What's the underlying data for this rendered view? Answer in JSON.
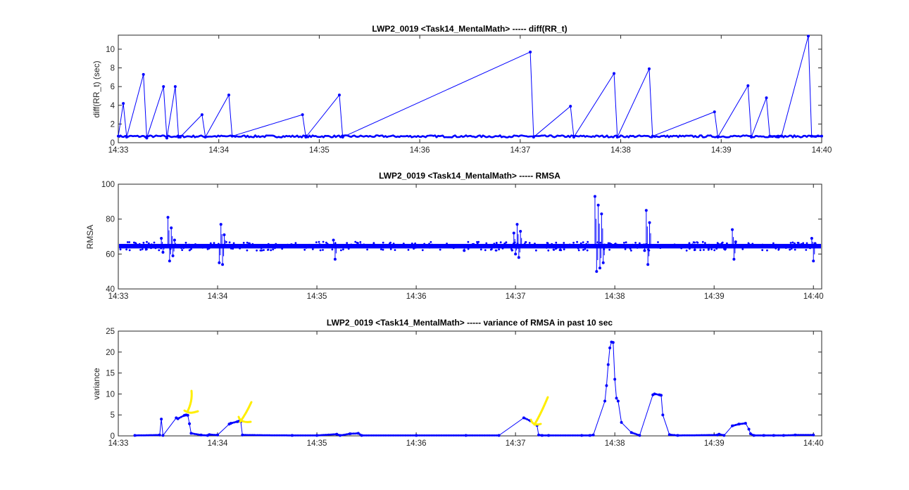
{
  "chart_data": [
    {
      "type": "line",
      "title": "LWP2_0019 <Task14_MentalMath> ----- diff(RR_t)",
      "xlabel": "",
      "ylabel": "diff(RR_t) (sec)",
      "x_unit": "time (HH:MM)",
      "xlim": [
        "14:33",
        "14:40"
      ],
      "ylim": [
        0,
        11.5
      ],
      "xticks": [
        "14:33",
        "14:34",
        "14:35",
        "14:36",
        "14:37",
        "14:38",
        "14:39",
        "14:40"
      ],
      "yticks": [
        0,
        2,
        4,
        6,
        8,
        10
      ],
      "marker": "dot",
      "series": [
        {
          "color": "#0000ff",
          "x": [
            "14:33:00",
            "14:33:03",
            "14:33:05",
            "14:33:15",
            "14:33:17",
            "14:33:27",
            "14:33:29",
            "14:33:34",
            "14:33:36",
            "14:33:37",
            "14:33:50",
            "14:33:52",
            "14:34:06",
            "14:34:08",
            "14:34:50",
            "14:34:52",
            "14:35:12",
            "14:35:14",
            "14:37:06",
            "14:37:08",
            "14:37:30",
            "14:37:32",
            "14:37:56",
            "14:37:58",
            "14:38:17",
            "14:38:19",
            "14:38:56",
            "14:38:58",
            "14:39:16",
            "14:39:18",
            "14:39:27",
            "14:39:29",
            "14:39:34",
            "14:39:36",
            "14:39:52",
            "14:39:54",
            "14:40:00"
          ],
          "y": [
            0.7,
            4.2,
            0.6,
            7.3,
            0.5,
            6.0,
            0.5,
            6.0,
            0.6,
            0.6,
            3.0,
            0.6,
            5.1,
            0.7,
            3.0,
            0.6,
            5.1,
            0.6,
            9.7,
            0.6,
            3.9,
            0.6,
            7.4,
            0.6,
            7.9,
            0.7,
            3.3,
            0.6,
            6.1,
            0.6,
            4.8,
            0.7,
            0.7,
            0.7,
            11.4,
            0.7,
            0.7
          ]
        }
      ]
    },
    {
      "type": "line",
      "title": "LWP2_0019 <Task14_MentalMath> ----- RMSA",
      "xlabel": "",
      "ylabel": "RMSA",
      "x_unit": "time (HH:MM)",
      "xlim": [
        "14:33",
        "14:40:05"
      ],
      "ylim": [
        40,
        100
      ],
      "xticks": [
        "14:33",
        "14:34",
        "14:35",
        "14:36",
        "14:37",
        "14:38",
        "14:39",
        "14:40"
      ],
      "yticks": [
        40,
        60,
        80,
        100
      ],
      "marker": "dot",
      "baseline": 64.5,
      "series": [
        {
          "color": "#0000ff",
          "x": [
            "14:33:26",
            "14:33:27",
            "14:33:30",
            "14:33:31",
            "14:33:32",
            "14:33:33",
            "14:33:34",
            "14:34:01",
            "14:34:02",
            "14:34:03",
            "14:34:04",
            "14:35:10",
            "14:35:11",
            "14:36:29",
            "14:36:59",
            "14:37:00",
            "14:37:01",
            "14:37:02",
            "14:37:03",
            "14:37:48",
            "14:37:49",
            "14:37:50",
            "14:37:51",
            "14:37:52",
            "14:37:53",
            "14:38:18",
            "14:38:19",
            "14:38:20",
            "14:38:21",
            "14:39:11",
            "14:39:12",
            "14:39:13",
            "14:39:59",
            "14:40:00",
            "14:40:01"
          ],
          "y": [
            69,
            61,
            81,
            56,
            75,
            59,
            68,
            55,
            77,
            54,
            71,
            68,
            57,
            62,
            72,
            60,
            77,
            58,
            73,
            93,
            50,
            88,
            52,
            83,
            55,
            62,
            85,
            54,
            78,
            74,
            57,
            67,
            69,
            56,
            66
          ]
        }
      ]
    },
    {
      "type": "line",
      "title": "LWP2_0019 <Task14_MentalMath> ----- variance of RMSA in past 10 sec",
      "xlabel": "",
      "ylabel": "variance",
      "x_unit": "time (HH:MM)",
      "xlim": [
        "14:33",
        "14:40:05"
      ],
      "ylim": [
        0,
        25
      ],
      "xticks": [
        "14:33",
        "14:34",
        "14:35",
        "14:36",
        "14:37",
        "14:38",
        "14:39",
        "14:40"
      ],
      "yticks": [
        0,
        5,
        10,
        15,
        20,
        25
      ],
      "marker": "dot",
      "series": [
        {
          "color": "#0000ff",
          "x": [
            "14:33:10",
            "14:33:25",
            "14:33:26",
            "14:33:27",
            "14:33:35",
            "14:33:36",
            "14:33:40",
            "14:33:41",
            "14:33:42",
            "14:33:43",
            "14:33:44",
            "14:33:50",
            "14:33:54",
            "14:33:55",
            "14:34:00",
            "14:34:07",
            "14:34:08",
            "14:34:12",
            "14:34:13",
            "14:34:14",
            "14:34:15",
            "14:34:45",
            "14:35:00",
            "14:35:12",
            "14:35:14",
            "14:35:20",
            "14:35:25",
            "14:35:27",
            "14:36:00",
            "14:36:30",
            "14:36:50",
            "14:37:05",
            "14:37:09",
            "14:37:13",
            "14:37:14",
            "14:37:16",
            "14:37:20",
            "14:37:40",
            "14:37:45",
            "14:37:47",
            "14:37:54",
            "14:37:55",
            "14:37:56",
            "14:37:57",
            "14:37:58",
            "14:37:59",
            "14:38:00",
            "14:38:01",
            "14:38:02",
            "14:38:04",
            "14:38:10",
            "14:38:15",
            "14:38:23",
            "14:38:24",
            "14:38:27",
            "14:38:28",
            "14:38:29",
            "14:38:33",
            "14:38:38",
            "14:39:02",
            "14:39:03",
            "14:39:06",
            "14:39:11",
            "14:39:15",
            "14:39:19",
            "14:39:21",
            "14:39:22",
            "14:39:24",
            "14:39:30",
            "14:39:36",
            "14:39:42",
            "14:39:49",
            "14:40:00"
          ],
          "y": [
            0.1,
            0.2,
            4.0,
            0.1,
            4.3,
            4.1,
            4.9,
            5.0,
            4.9,
            2.9,
            0.6,
            0.2,
            0.1,
            0.3,
            0.2,
            2.8,
            3.0,
            3.4,
            3.5,
            3.4,
            0.2,
            0.1,
            0.1,
            0.4,
            0.1,
            0.5,
            0.6,
            0.1,
            0.1,
            0.1,
            0.1,
            4.3,
            3.6,
            2.5,
            0.2,
            0.1,
            0.1,
            0.1,
            0.1,
            0.2,
            8.3,
            12.0,
            17.0,
            21.0,
            22.4,
            22.3,
            13.5,
            9.0,
            8.3,
            3.2,
            0.8,
            0.1,
            9.8,
            10.0,
            9.8,
            9.7,
            5.0,
            0.3,
            0.1,
            0.2,
            0.4,
            0.1,
            2.4,
            2.8,
            3.0,
            1.6,
            0.5,
            0.1,
            0.1,
            0.1,
            0.1,
            0.2,
            0.2
          ]
        }
      ]
    }
  ]
}
